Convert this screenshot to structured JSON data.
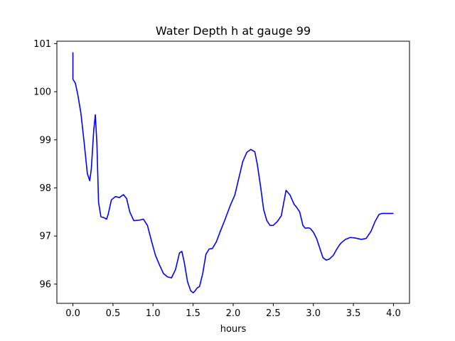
{
  "chart_data": {
    "type": "line",
    "title": "Water Depth h at gauge 99",
    "xlabel": "hours",
    "ylabel": "",
    "xlim": [
      -0.2,
      4.2
    ],
    "ylim": [
      95.6,
      101.05
    ],
    "xticks": [
      0.0,
      0.5,
      1.0,
      1.5,
      2.0,
      2.5,
      3.0,
      3.5,
      4.0
    ],
    "xtick_labels": [
      "0.0",
      "0.5",
      "1.0",
      "1.5",
      "2.0",
      "2.5",
      "3.0",
      "3.5",
      "4.0"
    ],
    "yticks": [
      96,
      97,
      98,
      99,
      100,
      101
    ],
    "ytick_labels": [
      "96",
      "97",
      "98",
      "99",
      "100",
      "101"
    ],
    "grid": false,
    "series": [
      {
        "color": "#0000ff",
        "x": [
          0.0,
          0.0,
          0.0,
          0.03,
          0.06,
          0.1,
          0.14,
          0.18,
          0.21,
          0.23,
          0.26,
          0.28,
          0.3,
          0.32,
          0.35,
          0.39,
          0.42,
          0.44,
          0.48,
          0.53,
          0.58,
          0.63,
          0.67,
          0.71,
          0.76,
          0.83,
          0.88,
          0.93,
          0.98,
          1.03,
          1.08,
          1.13,
          1.18,
          1.23,
          1.28,
          1.33,
          1.36,
          1.39,
          1.43,
          1.47,
          1.5,
          1.52,
          1.55,
          1.58,
          1.62,
          1.66,
          1.7,
          1.74,
          1.79,
          1.84,
          1.9,
          1.96,
          2.02,
          2.07,
          2.12,
          2.17,
          2.22,
          2.27,
          2.3,
          2.34,
          2.38,
          2.42,
          2.46,
          2.5,
          2.55,
          2.6,
          2.66,
          2.71,
          2.76,
          2.79,
          2.83,
          2.87,
          2.9,
          2.93,
          2.96,
          3.0,
          3.04,
          3.08,
          3.12,
          3.16,
          3.2,
          3.25,
          3.29,
          3.32,
          3.35,
          3.4,
          3.46,
          3.52,
          3.6,
          3.66,
          3.72,
          3.77,
          3.82,
          3.86,
          3.9,
          3.94,
          3.98,
          4.0
        ],
        "y": [
          100.82,
          100.28,
          100.26,
          100.18,
          99.95,
          99.55,
          98.95,
          98.3,
          98.15,
          98.4,
          99.2,
          99.52,
          98.9,
          97.7,
          97.4,
          97.38,
          97.35,
          97.45,
          97.75,
          97.82,
          97.8,
          97.86,
          97.78,
          97.5,
          97.32,
          97.33,
          97.35,
          97.22,
          96.9,
          96.6,
          96.4,
          96.22,
          96.15,
          96.13,
          96.3,
          96.65,
          96.68,
          96.45,
          96.05,
          95.86,
          95.82,
          95.85,
          95.92,
          95.95,
          96.22,
          96.62,
          96.73,
          96.74,
          96.88,
          97.1,
          97.35,
          97.62,
          97.85,
          98.2,
          98.55,
          98.74,
          98.8,
          98.75,
          98.5,
          98.05,
          97.55,
          97.32,
          97.22,
          97.22,
          97.3,
          97.42,
          97.95,
          97.85,
          97.66,
          97.6,
          97.5,
          97.22,
          97.16,
          97.17,
          97.16,
          97.08,
          96.95,
          96.75,
          96.55,
          96.5,
          96.52,
          96.6,
          96.72,
          96.8,
          96.86,
          96.93,
          96.97,
          96.96,
          96.93,
          96.95,
          97.1,
          97.3,
          97.45,
          97.47,
          97.47,
          97.47,
          97.47,
          97.47
        ]
      }
    ]
  }
}
